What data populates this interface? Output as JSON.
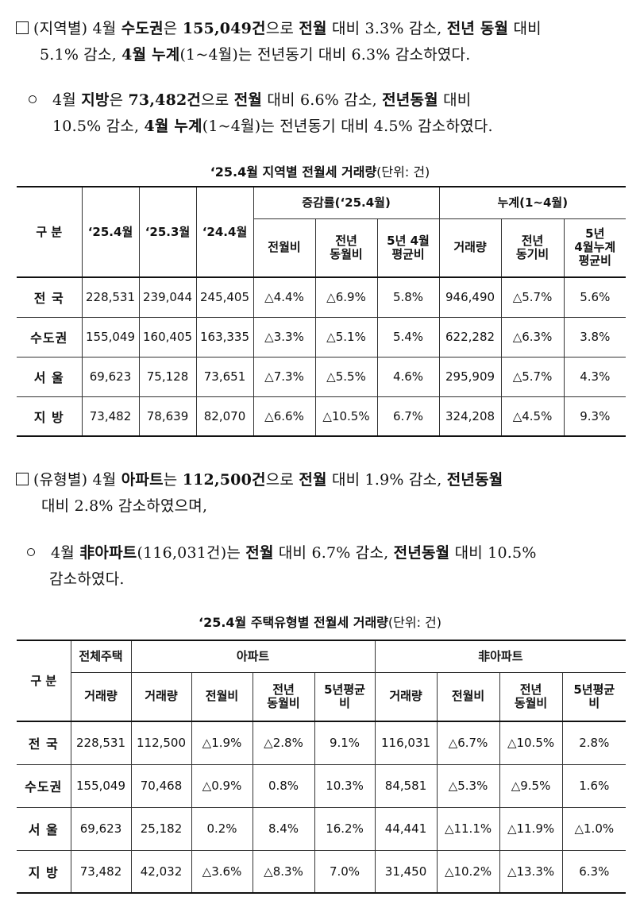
{
  "paragraphs": {
    "p1": {
      "l1": [
        "(지역별) 4월 ",
        "수도권",
        "은 ",
        "155,049건",
        "으로 ",
        "전월",
        " 대비 3.3% 감소, ",
        "전년 동월",
        " 대비"
      ],
      "l2": [
        "5.1% 감소, ",
        "4월 누계",
        "(1~4월)는 전년동기 대비 6.3% 감소하였다."
      ]
    },
    "p2": {
      "l1": [
        "4월 ",
        "지방",
        "은 ",
        "73,482건",
        "으로 ",
        "전월",
        " 대비 6.6% 감소, ",
        "전년동월",
        " 대비"
      ],
      "l2": [
        "10.5% 감소, ",
        "4월 누계",
        "(1~4월)는 전년동기 대비 4.5% 감소하였다."
      ]
    },
    "p3": {
      "l1": [
        "(유형별) 4월 ",
        "아파트",
        "는 ",
        "112,500건",
        "으로 ",
        "전월",
        " 대비 1.9% 감소, ",
        "전년동월",
        ""
      ],
      "l2": [
        "대비 2.8% 감소하였으며,"
      ]
    },
    "p4": {
      "l1": [
        "4월 ",
        "非아파트",
        "(116,031건)는 ",
        "전월",
        " 대비 6.7% 감소, ",
        "전년동월",
        " 대비 10.5%"
      ],
      "l2": [
        "감소하였다."
      ]
    }
  },
  "table1": {
    "caption": "‘25.4월  지역별 전월세 거래량",
    "unit": "(단위: 건)",
    "header": {
      "gubun": "구 분",
      "c1": "‘25.4월",
      "c2": "‘25.3월",
      "c3": "‘24.4월",
      "group1": "증감률(‘25.4월)",
      "group2": "누계(1~4월)",
      "g1a": "전월비",
      "g1b": "전년\n동월비",
      "g1c": "5년 4월\n평균비",
      "g2a": "거래량",
      "g2b": "전년\n동기비",
      "g2c": "5년\n4월누계\n평균비"
    },
    "rows": [
      [
        "전 국",
        "228,531",
        "239,044",
        "245,405",
        "△4.4%",
        "△6.9%",
        "5.8%",
        "946,490",
        "△5.7%",
        "5.6%"
      ],
      [
        "수도권",
        "155,049",
        "160,405",
        "163,335",
        "△3.3%",
        "△5.1%",
        "5.4%",
        "622,282",
        "△6.3%",
        "3.8%"
      ],
      [
        "서 울",
        "69,623",
        "75,128",
        "73,651",
        "△7.3%",
        "△5.5%",
        "4.6%",
        "295,909",
        "△5.7%",
        "4.3%"
      ],
      [
        "지 방",
        "73,482",
        "78,639",
        "82,070",
        "△6.6%",
        "△10.5%",
        "6.7%",
        "324,208",
        "△4.5%",
        "9.3%"
      ]
    ]
  },
  "table2": {
    "caption": "‘25.4월  주택유형별 전월세 거래량",
    "unit": "(단위: 건)",
    "header": {
      "gubun": "구 분",
      "all": "전체주택",
      "apt": "아파트",
      "nonapt": "非아파트",
      "all_a": "거래량",
      "apt_a": "거래량",
      "apt_b": "전월비",
      "apt_c": "전년\n동월비",
      "apt_d": "5년평균\n비",
      "non_a": "거래량",
      "non_b": "전월비",
      "non_c": "전년\n동월비",
      "non_d": "5년평균\n비"
    },
    "rows": [
      [
        "전 국",
        "228,531",
        "112,500",
        "△1.9%",
        "△2.8%",
        "9.1%",
        "116,031",
        "△6.7%",
        "△10.5%",
        "2.8%"
      ],
      [
        "수도권",
        "155,049",
        "70,468",
        "△0.9%",
        "0.8%",
        "10.3%",
        "84,581",
        "△5.3%",
        "△9.5%",
        "1.6%"
      ],
      [
        "서 울",
        "69,623",
        "25,182",
        "0.2%",
        "8.4%",
        "16.2%",
        "44,441",
        "△11.1%",
        "△11.9%",
        "△1.0%"
      ],
      [
        "지 방",
        "73,482",
        "42,032",
        "△3.6%",
        "△8.3%",
        "7.0%",
        "31,450",
        "△10.2%",
        "△13.3%",
        "6.3%"
      ]
    ]
  }
}
